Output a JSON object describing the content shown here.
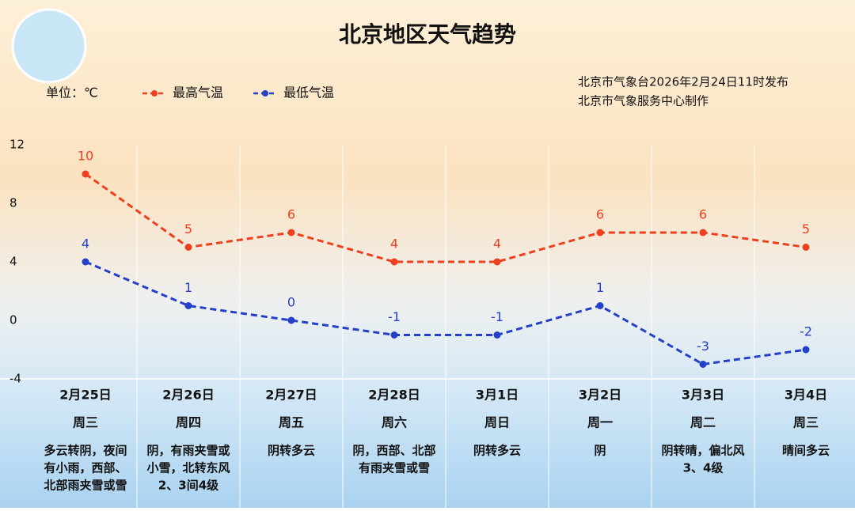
{
  "chart_data": {
    "type": "line",
    "title": "北京地区天气趋势",
    "unit_label": "单位：℃",
    "source_lines": [
      "北京市气象台2026年2月24日11时发布",
      "北京市气象服务中心制作"
    ],
    "categories": [
      "2月25日",
      "2月26日",
      "2月27日",
      "2月28日",
      "3月1日",
      "3月2日",
      "3月3日",
      "3月4日"
    ],
    "weekdays": [
      "周三",
      "周四",
      "周五",
      "周六",
      "周日",
      "周一",
      "周二",
      "周三"
    ],
    "weather": [
      [
        "多云转阴，夜间",
        "有小雨，西部、",
        "北部雨夹雪或雪"
      ],
      [
        "阴，有雨夹雪或",
        "小雪，北转东风",
        "2、3间4级"
      ],
      [
        "阴转多云"
      ],
      [
        "阴，西部、北部",
        "有雨夹雪或雪"
      ],
      [
        "阴转多云"
      ],
      [
        "阴"
      ],
      [
        "阴转晴，偏北风",
        "3、4级"
      ],
      [
        "晴间多云"
      ]
    ],
    "series": [
      {
        "name": "最高气温",
        "color": "#ee3f1f",
        "values": [
          10,
          5,
          6,
          4,
          4,
          6,
          6,
          5
        ]
      },
      {
        "name": "最低气温",
        "color": "#2440c8",
        "values": [
          4,
          1,
          0,
          -1,
          -1,
          1,
          -3,
          -2
        ]
      }
    ],
    "ylim": [
      -4,
      12
    ],
    "yticks": [
      12,
      8,
      4,
      0,
      -4
    ],
    "grid": false
  }
}
